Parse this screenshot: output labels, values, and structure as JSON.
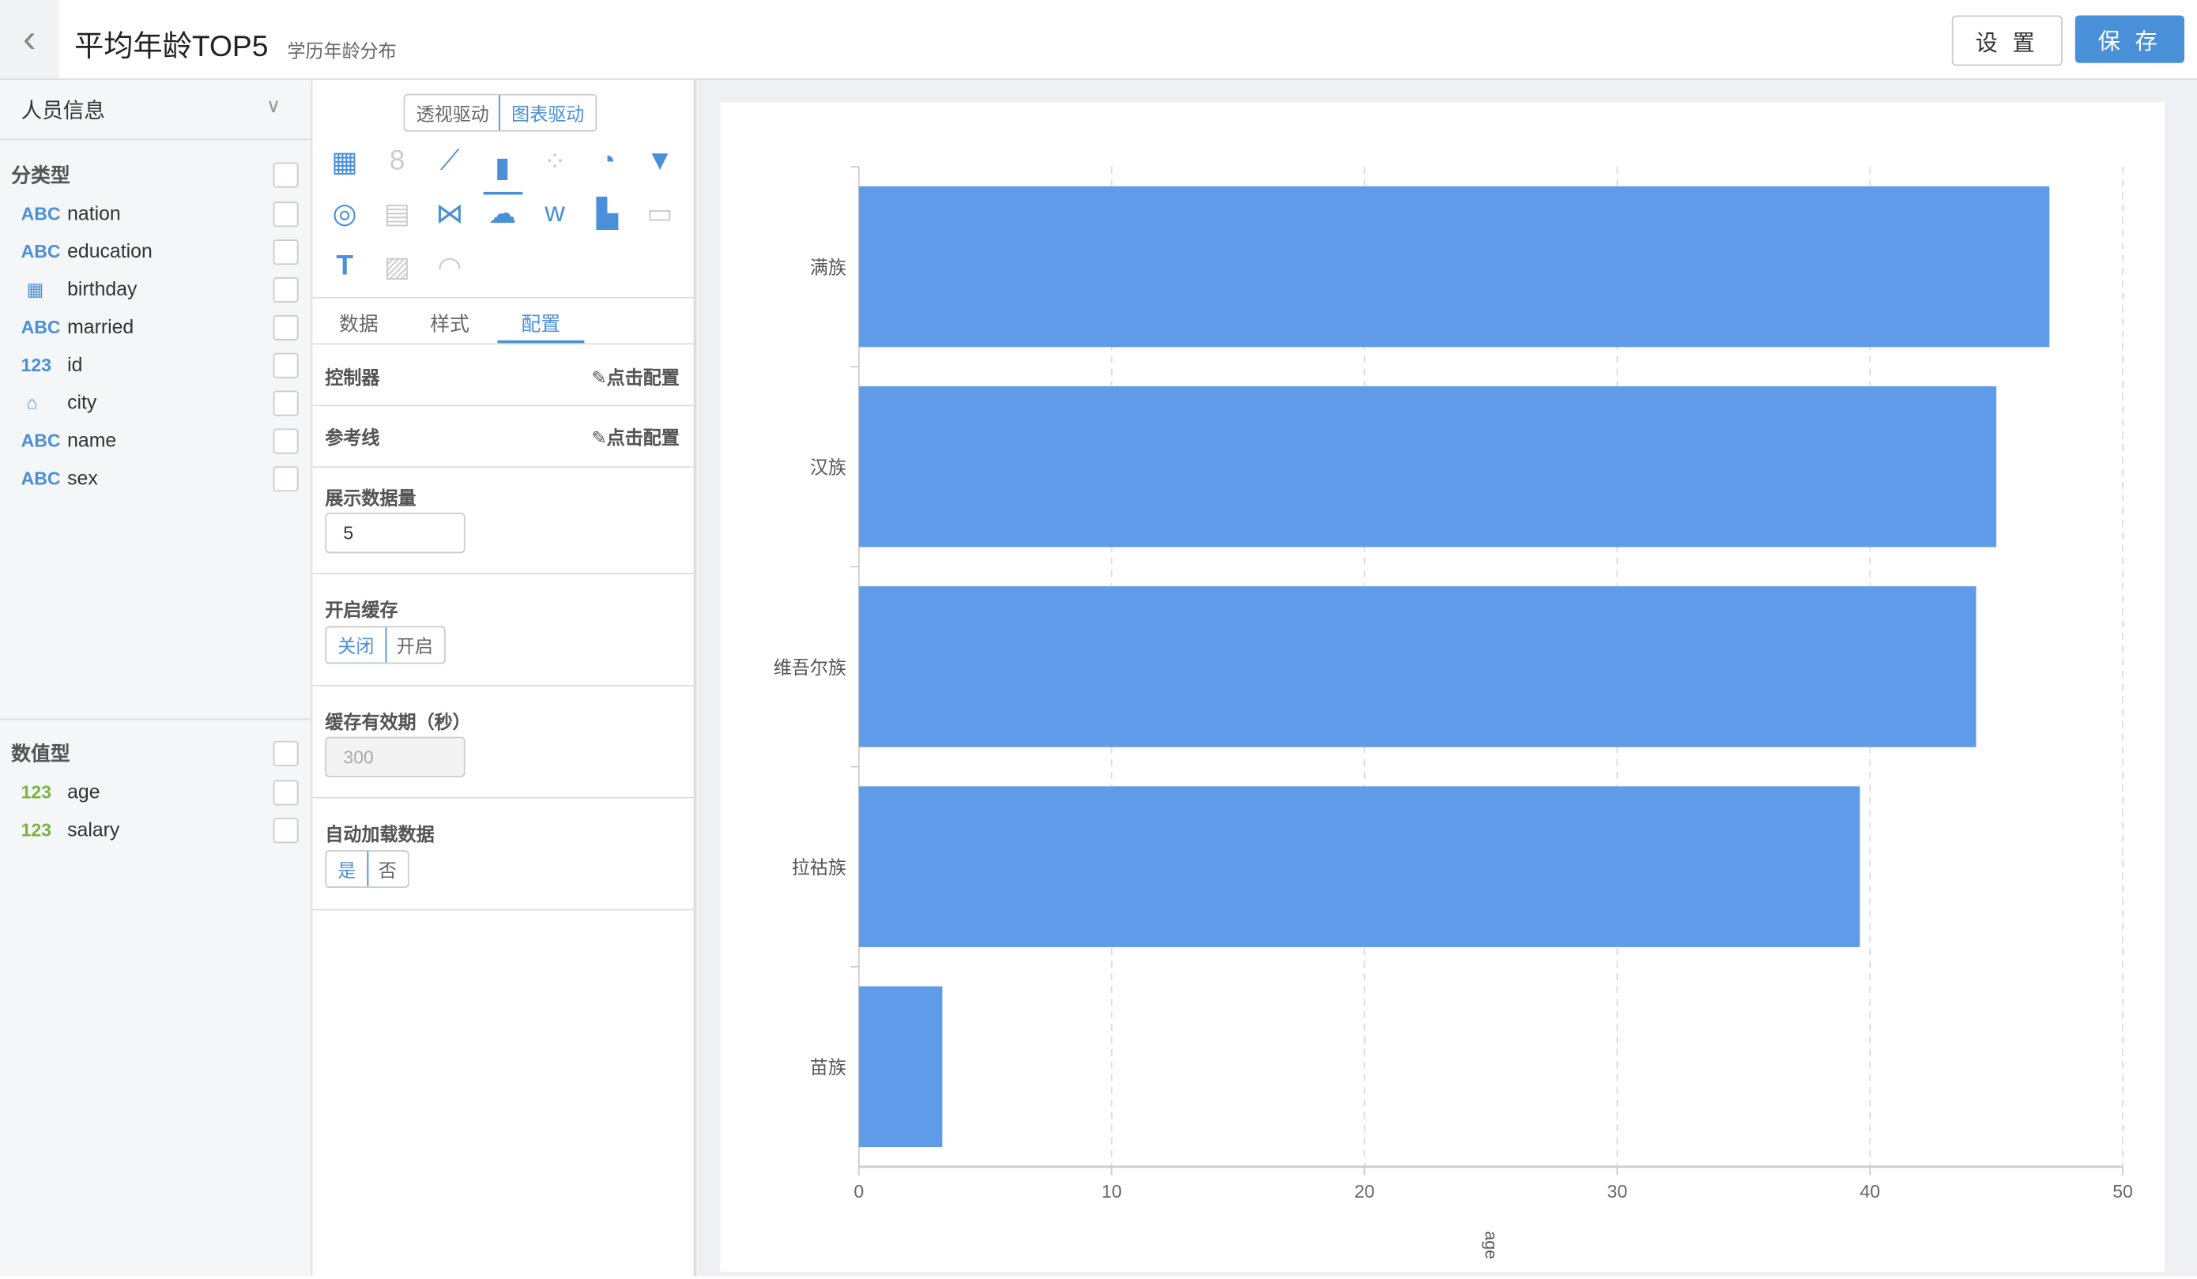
{
  "header": {
    "title": "平均年龄TOP5",
    "subtitle": "学历年龄分布",
    "settings_label": "设 置",
    "save_label": "保 存",
    "back_icon": "chevron-left-icon"
  },
  "sidebar": {
    "dataset": "人员信息",
    "categorical_title": "分类型",
    "categorical": [
      {
        "type": "ABC",
        "name": "nation"
      },
      {
        "type": "ABC",
        "name": "education"
      },
      {
        "type": "calendar-icon",
        "name": "birthday"
      },
      {
        "type": "ABC",
        "name": "married"
      },
      {
        "type": "123",
        "name": "id"
      },
      {
        "type": "map-pin-icon",
        "name": "city"
      },
      {
        "type": "ABC",
        "name": "name"
      },
      {
        "type": "ABC",
        "name": "sex"
      }
    ],
    "numeric_title": "数值型",
    "numeric": [
      {
        "type": "123",
        "name": "age"
      },
      {
        "type": "123",
        "name": "salary"
      }
    ]
  },
  "config": {
    "modes": [
      "透视驱动",
      "图表驱动"
    ],
    "active_mode": "图表驱动",
    "chart_types": [
      "table",
      "number-card",
      "line",
      "bar",
      "scatter",
      "pie",
      "funnel",
      "radar",
      "sankey",
      "parallel",
      "china-map",
      "word-cloud",
      "waterfall",
      "iframe",
      "text",
      "kpi",
      "gauge"
    ],
    "active_chart_type": "bar",
    "tabs": [
      "数据",
      "样式",
      "配置"
    ],
    "active_tab": "配置",
    "controller_label": "控制器",
    "controller_action": "点击配置",
    "refline_label": "参考线",
    "refline_action": "点击配置",
    "limit_label": "展示数据量",
    "limit_value": "5",
    "cache_label": "开启缓存",
    "cache_options": [
      "关闭",
      "开启"
    ],
    "cache_selected": "关闭",
    "expire_label": "缓存有效期（秒）",
    "expire_value": "300",
    "autoload_label": "自动加载数据",
    "autoload_options": [
      "是",
      "否"
    ],
    "autoload_selected": "是"
  },
  "chart_data": {
    "type": "bar",
    "orientation": "horizontal",
    "categories": [
      "满族",
      "汉族",
      "维吾尔族",
      "拉祜族",
      "苗族"
    ],
    "values": [
      47.1,
      45.0,
      44.2,
      39.6,
      3.3
    ],
    "xlabel": "age",
    "xlim": [
      0,
      50
    ],
    "xticks": [
      "0",
      "10",
      "20",
      "30",
      "40",
      "50"
    ],
    "grid": "vertical-dashed",
    "color": "#5f9be8"
  },
  "colors": {
    "accent": "#4a90d9",
    "bar": "#5f9be8"
  }
}
